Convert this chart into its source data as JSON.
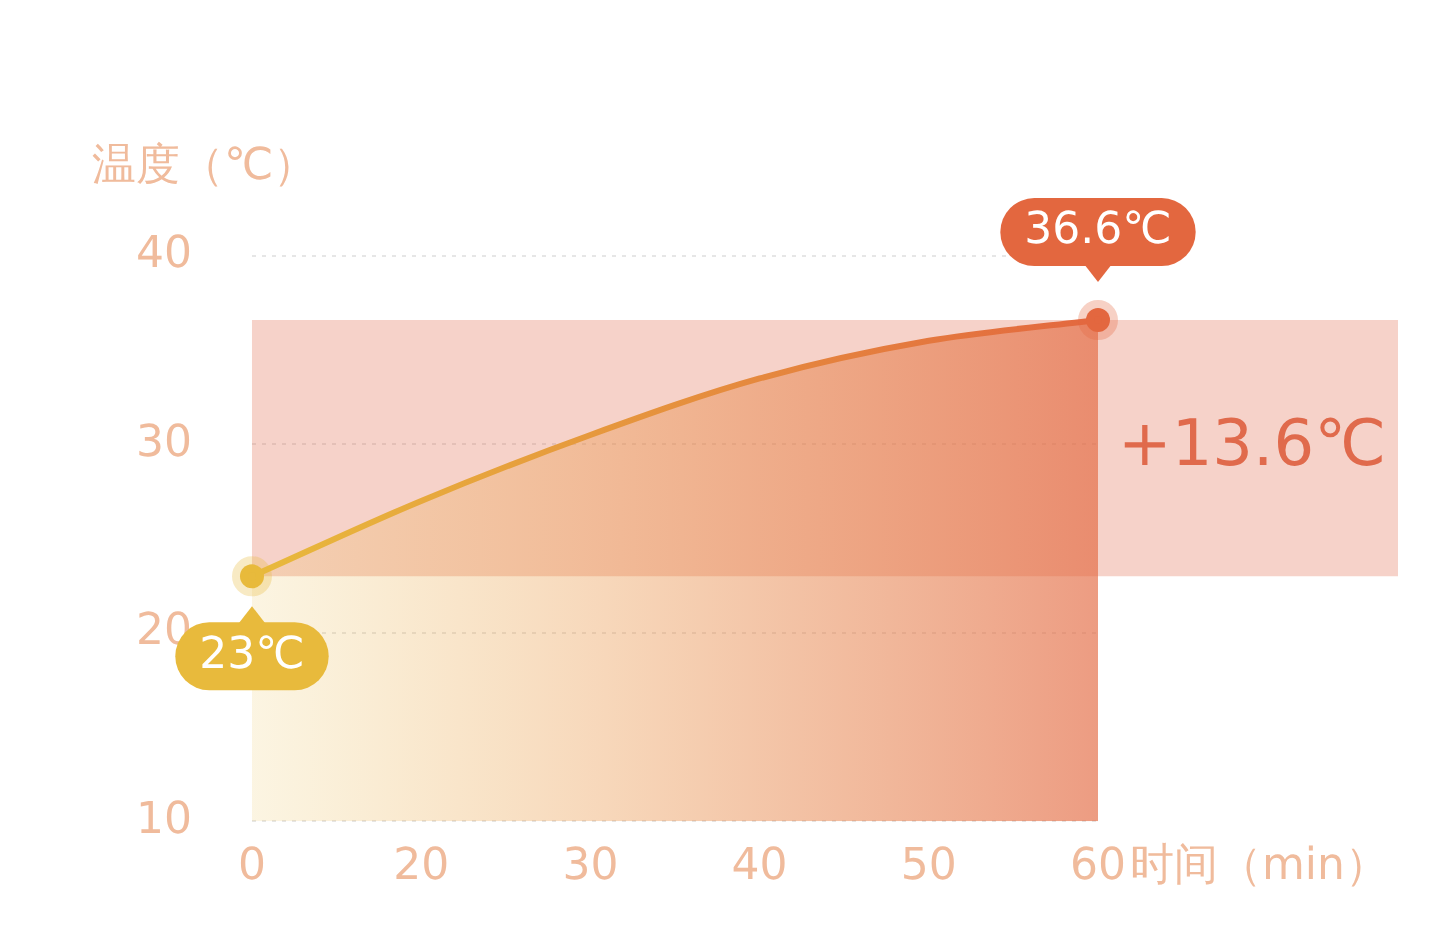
{
  "chart_data": {
    "type": "area",
    "ylabel": "温度（℃）",
    "xlabel": "时间（min）",
    "categories": [
      "0",
      "20",
      "30",
      "40",
      "50",
      "60"
    ],
    "series": [
      {
        "color": "#e3673f",
        "colors": [
          "#e8ba3c",
          "#e9a43c",
          "#e9913e",
          "#e6803f",
          "#e4733f",
          "#e3673f"
        ],
        "values": [
          23,
          27,
          30.5,
          33.5,
          35.5,
          36.6
        ],
        "value_labels": [
          "23℃",
          null,
          null,
          null,
          null,
          "36.6℃"
        ]
      }
    ],
    "ylim": [
      10,
      40
    ],
    "yticks": [
      10,
      20,
      30,
      40
    ],
    "grid": "y",
    "legend": false,
    "line_style": "solid",
    "bands": [
      {
        "axis": "y",
        "from": 23,
        "to": 36.6,
        "label": "+13.6℃",
        "color": "#e06a4c"
      }
    ]
  }
}
